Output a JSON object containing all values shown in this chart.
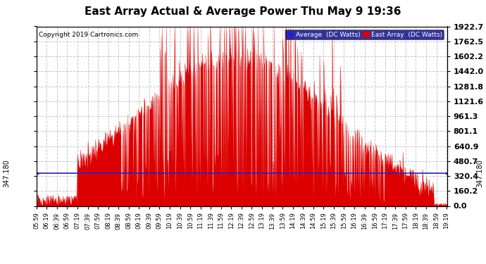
{
  "title": "East Array Actual & Average Power Thu May 9 19:36",
  "copyright": "Copyright 2019 Cartronics.com",
  "average_value": 347.18,
  "y_max": 1922.7,
  "y_min": 0.0,
  "y_ticks": [
    0.0,
    160.2,
    320.4,
    480.7,
    640.9,
    801.1,
    961.3,
    1121.6,
    1281.8,
    1442.0,
    1602.2,
    1762.5,
    1922.7
  ],
  "background_color": "#ffffff",
  "plot_bg_color": "#ffffff",
  "grid_color": "#c8c8c8",
  "area_color": "#dd0000",
  "avg_line_color": "#2222cc",
  "title_fontsize": 11,
  "avg_label": "Average  (DC Watts)",
  "east_label": "East Array  (DC Watts)",
  "legend_bg": "#000080",
  "legend_fg": "#ffffff"
}
